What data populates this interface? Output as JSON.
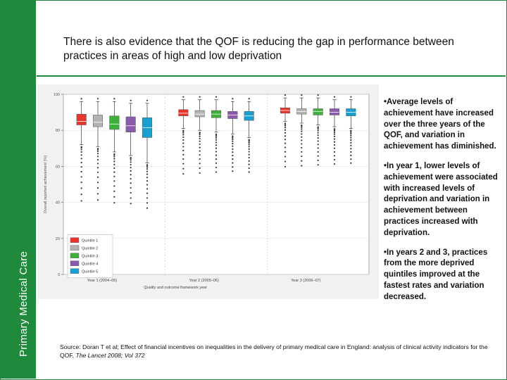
{
  "sidebar": {
    "label": "Primary Medical Care"
  },
  "header": {
    "title": "There is also evidence that the QOF is reducing the gap in performance between practices in areas of high and low deprivation"
  },
  "bullets": [
    "•Average levels of achievement have increased over the three years of the QOF, and variation in achievement has diminished.",
    "•In year 1, lower levels of achievement were associated with increased levels of deprivation and variation in achievement between practices increased with deprivation.",
    "•In years 2 and 3, practices from the more deprived quintiles improved at the fastest rates and variation decreased."
  ],
  "source": {
    "prefix": "Source: Doran T et al; Effect of financial incentives on inequalities in the delivery of primary medical care in England: analysis of clinical activity indicators for the QOF, ",
    "journal": "The Lancet 2008; Vol 372"
  },
  "colors": {
    "brand": "#1f8a3b"
  },
  "chart_data": {
    "type": "box",
    "xlabel": "Quality and outcome framework year",
    "ylabel": "Overall reported achievement (%)",
    "ylim": [
      0,
      100
    ],
    "yticks": [
      0,
      20,
      40,
      60,
      80,
      100
    ],
    "groups": [
      "Year 1 (2004–05)",
      "Year 2 (2005–06)",
      "Year 3 (2006–07)"
    ],
    "series": [
      {
        "name": "Quintile 1",
        "color": "#e8352e",
        "boxes": [
          {
            "q1": 83,
            "median": 85,
            "q3": 89,
            "whisker_low": 72,
            "whisker_high": 96
          },
          {
            "q1": 88,
            "median": 89.5,
            "q3": 91.5,
            "whisker_low": 81,
            "whisker_high": 97
          },
          {
            "q1": 89.5,
            "median": 91,
            "q3": 92.5,
            "whisker_low": 85,
            "whisker_high": 98
          }
        ]
      },
      {
        "name": "Quintile 2",
        "color": "#b3b3b3",
        "boxes": [
          {
            "q1": 82,
            "median": 84.5,
            "q3": 88.5,
            "whisker_low": 71,
            "whisker_high": 96
          },
          {
            "q1": 87.5,
            "median": 89,
            "q3": 91,
            "whisker_low": 80,
            "whisker_high": 97
          },
          {
            "q1": 89,
            "median": 90.5,
            "q3": 92,
            "whisker_low": 84,
            "whisker_high": 98
          }
        ]
      },
      {
        "name": "Quintile 3",
        "color": "#3fae3b",
        "boxes": [
          {
            "q1": 80.5,
            "median": 83.5,
            "q3": 88,
            "whisker_low": 68,
            "whisker_high": 96
          },
          {
            "q1": 87,
            "median": 89,
            "q3": 91,
            "whisker_low": 79,
            "whisker_high": 97
          },
          {
            "q1": 88.5,
            "median": 90.5,
            "q3": 92,
            "whisker_low": 83,
            "whisker_high": 98
          }
        ]
      },
      {
        "name": "Quintile 4",
        "color": "#8a5bab",
        "boxes": [
          {
            "q1": 79,
            "median": 82.5,
            "q3": 87.5,
            "whisker_low": 66,
            "whisker_high": 95
          },
          {
            "q1": 86.5,
            "median": 88.5,
            "q3": 90.5,
            "whisker_low": 78,
            "whisker_high": 96
          },
          {
            "q1": 88.5,
            "median": 90,
            "q3": 92,
            "whisker_low": 82,
            "whisker_high": 97
          }
        ]
      },
      {
        "name": "Quintile 5",
        "color": "#1b9fd0",
        "boxes": [
          {
            "q1": 76,
            "median": 81.5,
            "q3": 87,
            "whisker_low": 62,
            "whisker_high": 95
          },
          {
            "q1": 85.5,
            "median": 88,
            "q3": 90.5,
            "whisker_low": 76,
            "whisker_high": 96
          },
          {
            "q1": 88,
            "median": 90,
            "q3": 92,
            "whisker_low": 81,
            "whisker_high": 97
          }
        ]
      }
    ],
    "legend_position": "bottom-left",
    "grid": true
  }
}
